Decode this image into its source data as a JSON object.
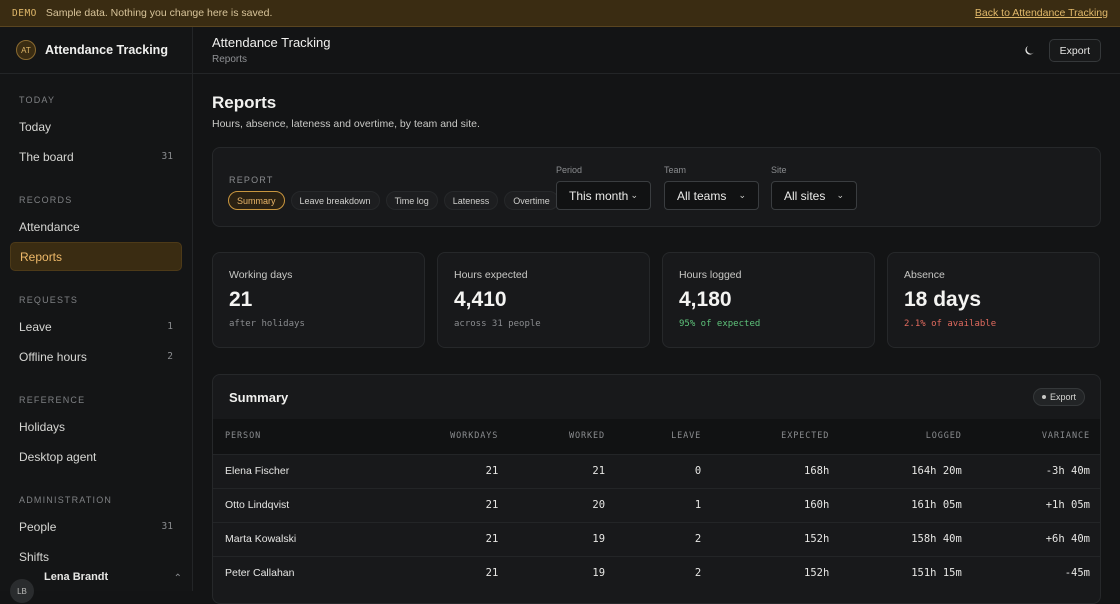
{
  "banner": {
    "tag": "DEMO",
    "message": "Sample data. Nothing you change here is saved.",
    "link": "Back to Attendance Tracking"
  },
  "brand": {
    "initials": "AT",
    "name": "Attendance Tracking"
  },
  "sidebar": {
    "sections": [
      {
        "label": "TODAY",
        "items": [
          {
            "label": "Today",
            "count": ""
          },
          {
            "label": "The board",
            "count": "31"
          }
        ]
      },
      {
        "label": "RECORDS",
        "items": [
          {
            "label": "Attendance",
            "count": ""
          },
          {
            "label": "Reports",
            "count": "",
            "active": true
          }
        ]
      },
      {
        "label": "REQUESTS",
        "items": [
          {
            "label": "Leave",
            "count": "1"
          },
          {
            "label": "Offline hours",
            "count": "2"
          }
        ]
      },
      {
        "label": "REFERENCE",
        "items": [
          {
            "label": "Holidays",
            "count": ""
          },
          {
            "label": "Desktop agent",
            "count": ""
          }
        ]
      },
      {
        "label": "ADMINISTRATION",
        "items": [
          {
            "label": "People",
            "count": "31"
          },
          {
            "label": "Shifts",
            "count": ""
          }
        ]
      }
    ],
    "user": {
      "initials": "LB",
      "name": "Lena Brandt"
    }
  },
  "topbar": {
    "title": "Attendance Tracking",
    "breadcrumb": "Reports",
    "export_label": "Export"
  },
  "page": {
    "title": "Reports",
    "subtitle": "Hours, absence, lateness and overtime, by team and site."
  },
  "filters": {
    "report_label": "REPORT",
    "report_pills": [
      "Summary",
      "Leave breakdown",
      "Time log",
      "Lateness",
      "Overtime"
    ],
    "active_pill": "Summary",
    "period": {
      "label": "Period",
      "value": "This month"
    },
    "team": {
      "label": "Team",
      "value": "All teams"
    },
    "site": {
      "label": "Site",
      "value": "All sites"
    }
  },
  "stats": [
    {
      "label": "Working days",
      "value": "21",
      "note": "after holidays",
      "tone": "neutral"
    },
    {
      "label": "Hours expected",
      "value": "4,410",
      "note": "across 31 people",
      "tone": "neutral"
    },
    {
      "label": "Hours logged",
      "value": "4,180",
      "note": "95% of expected",
      "tone": "good"
    },
    {
      "label": "Absence",
      "value": "18 days",
      "note": "2.1% of available",
      "tone": "bad"
    }
  ],
  "summary": {
    "title": "Summary",
    "export_label": "Export",
    "columns": [
      "PERSON",
      "WORKDAYS",
      "WORKED",
      "LEAVE",
      "EXPECTED",
      "LOGGED",
      "VARIANCE"
    ],
    "rows": [
      [
        "Elena Fischer",
        "21",
        "21",
        "0",
        "168h",
        "164h 20m",
        "-3h 40m"
      ],
      [
        "Otto Lindqvist",
        "21",
        "20",
        "1",
        "160h",
        "161h 05m",
        "+1h 05m"
      ],
      [
        "Marta Kowalski",
        "21",
        "19",
        "2",
        "152h",
        "158h 40m",
        "+6h 40m"
      ],
      [
        "Peter Callahan",
        "21",
        "19",
        "2",
        "152h",
        "151h 15m",
        "-45m"
      ]
    ]
  },
  "colors": {
    "accent": "#e8b468",
    "good": "#5ec27a",
    "bad": "#e06a5e",
    "background": "#131415"
  }
}
